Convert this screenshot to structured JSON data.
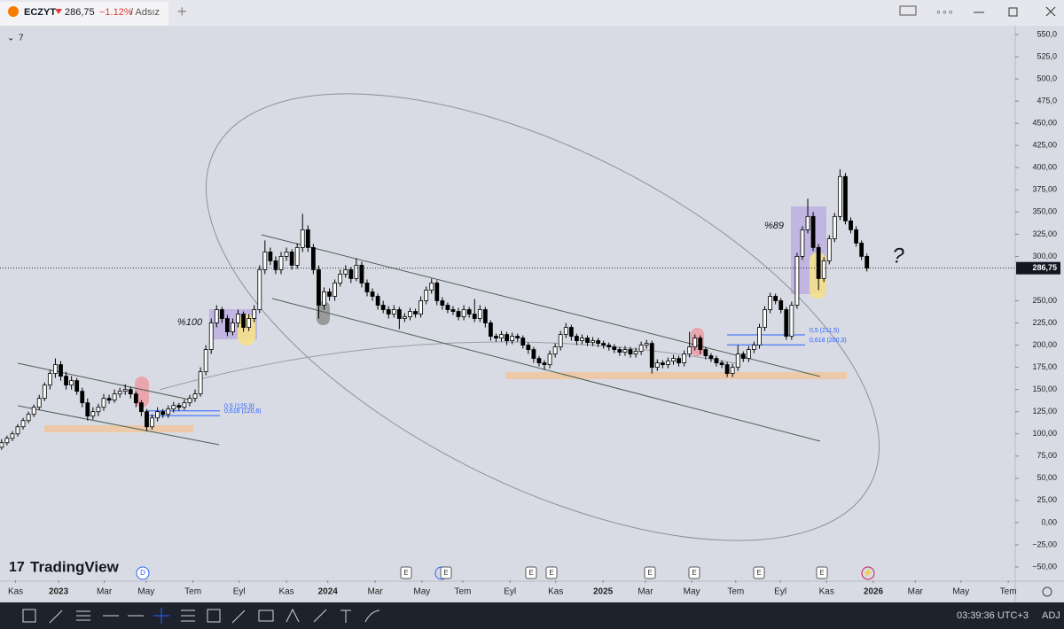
{
  "window": {
    "symbol": "ECZYT",
    "price": "286,75",
    "change": "−1.12%",
    "layout": "/ Adsız",
    "interval": "7"
  },
  "toolbar": {
    "time": "03:39:36 UTC+3",
    "adj": "ADJ"
  },
  "brand": "TradingView",
  "events": [
    "D",
    "E",
    "E",
    "E",
    "E",
    "E",
    "E",
    "E",
    "E"
  ],
  "chart_data": {
    "type": "candlestick",
    "up_color": "#ffffff",
    "down_color": "#000000",
    "wick_color": "#000000",
    "xlim": [
      -0.3,
      188.6
    ],
    "ylim": [
      -65,
      559
    ],
    "yticks": [
      {
        "value": 550,
        "label": "550,0"
      },
      {
        "value": 525,
        "label": "525,0"
      },
      {
        "value": 500,
        "label": "500,0"
      },
      {
        "value": 475,
        "label": "475,0"
      },
      {
        "value": 450,
        "label": "450,00"
      },
      {
        "value": 425,
        "label": "425,00"
      },
      {
        "value": 400,
        "label": "400,00"
      },
      {
        "value": 375,
        "label": "375,00"
      },
      {
        "value": 350,
        "label": "350,00"
      },
      {
        "value": 325,
        "label": "325,00"
      },
      {
        "value": 300,
        "label": "300,00"
      },
      {
        "value": 250,
        "label": "250,00"
      },
      {
        "value": 225,
        "label": "225,00"
      },
      {
        "value": 200,
        "label": "200,00"
      },
      {
        "value": 175,
        "label": "175,00"
      },
      {
        "value": 150,
        "label": "150,00"
      },
      {
        "value": 125,
        "label": "125,00"
      },
      {
        "value": 100,
        "label": "100,00"
      },
      {
        "value": 75,
        "label": "75,00"
      },
      {
        "value": 50,
        "label": "50,00"
      },
      {
        "value": 25,
        "label": "25,00"
      },
      {
        "value": 0,
        "label": "0,00"
      },
      {
        "value": -25,
        "label": "−25,00"
      },
      {
        "value": -50,
        "label": "−50,00"
      }
    ],
    "xticks": [
      {
        "value": 2.6,
        "label": "Kas"
      },
      {
        "value": 10.6,
        "label": "2023"
      },
      {
        "value": 19.1,
        "label": "Mar"
      },
      {
        "value": 26.9,
        "label": "May"
      },
      {
        "value": 35.6,
        "label": "Tem"
      },
      {
        "value": 44.2,
        "label": "Eyl"
      },
      {
        "value": 53,
        "label": "Kas"
      },
      {
        "value": 60.7,
        "label": "2024"
      },
      {
        "value": 69.5,
        "label": "Mar"
      },
      {
        "value": 78.2,
        "label": "May"
      },
      {
        "value": 85.8,
        "label": "Tem"
      },
      {
        "value": 94.6,
        "label": "Eyl"
      },
      {
        "value": 103.1,
        "label": "Kas"
      },
      {
        "value": 111.9,
        "label": "2025"
      },
      {
        "value": 119.8,
        "label": "Mar"
      },
      {
        "value": 128.4,
        "label": "May"
      },
      {
        "value": 136.6,
        "label": "Tem"
      },
      {
        "value": 144.9,
        "label": "Eyl"
      },
      {
        "value": 153.5,
        "label": "Kas"
      },
      {
        "value": 162.2,
        "label": "2026"
      },
      {
        "value": 170,
        "label": "Mar"
      },
      {
        "value": 178.5,
        "label": "May"
      },
      {
        "value": 187.3,
        "label": "Tem"
      }
    ],
    "last_price": {
      "value": 286.75,
      "label": "286,75"
    },
    "fib_levels": [
      {
        "value": 125.9,
        "label": "0,5 (125,9)"
      },
      {
        "value": 120.6,
        "label": "0,618 (120,6)"
      },
      {
        "value": 211.5,
        "label": "0,5 (211,5)"
      },
      {
        "value": 200.3,
        "label": "0,618 (200,3)"
      }
    ],
    "annotations": [
      "%100",
      "%89",
      "?"
    ],
    "candles": [
      [
        85,
        94,
        82,
        90
      ],
      [
        90,
        98,
        87,
        95
      ],
      [
        95,
        103,
        92,
        100
      ],
      [
        100,
        111,
        97,
        108
      ],
      [
        108,
        118,
        105,
        115
      ],
      [
        115,
        125,
        112,
        122
      ],
      [
        122,
        133,
        119,
        130
      ],
      [
        130,
        144,
        127,
        140
      ],
      [
        140,
        158,
        137,
        155
      ],
      [
        155,
        172,
        150,
        168
      ],
      [
        168,
        185,
        163,
        178
      ],
      [
        178,
        182,
        160,
        165
      ],
      [
        165,
        170,
        150,
        155
      ],
      [
        155,
        165,
        150,
        160
      ],
      [
        160,
        163,
        144,
        148
      ],
      [
        148,
        152,
        130,
        135
      ],
      [
        135,
        140,
        115,
        120
      ],
      [
        120,
        130,
        116,
        125
      ],
      [
        125,
        134,
        120,
        130
      ],
      [
        130,
        145,
        126,
        140
      ],
      [
        140,
        144,
        134,
        138
      ],
      [
        138,
        150,
        135,
        145
      ],
      [
        145,
        152,
        141,
        148
      ],
      [
        148,
        156,
        144,
        150
      ],
      [
        150,
        153,
        140,
        145
      ],
      [
        145,
        148,
        130,
        135
      ],
      [
        135,
        138,
        120,
        125
      ],
      [
        125,
        128,
        103,
        108
      ],
      [
        108,
        122,
        105,
        118
      ],
      [
        118,
        130,
        114,
        125
      ],
      [
        125,
        128,
        118,
        122
      ],
      [
        122,
        132,
        118,
        128
      ],
      [
        128,
        136,
        124,
        132
      ],
      [
        132,
        135,
        126,
        130
      ],
      [
        130,
        139,
        127,
        135
      ],
      [
        135,
        144,
        131,
        140
      ],
      [
        140,
        150,
        136,
        145
      ],
      [
        145,
        175,
        142,
        170
      ],
      [
        170,
        200,
        166,
        195
      ],
      [
        195,
        230,
        190,
        225
      ],
      [
        225,
        245,
        220,
        240
      ],
      [
        240,
        243,
        225,
        230
      ],
      [
        230,
        234,
        210,
        215
      ],
      [
        215,
        230,
        211,
        225
      ],
      [
        225,
        240,
        220,
        235
      ],
      [
        235,
        238,
        215,
        220
      ],
      [
        220,
        235,
        216,
        230
      ],
      [
        230,
        245,
        226,
        240
      ],
      [
        240,
        290,
        236,
        285
      ],
      [
        285,
        318,
        280,
        305
      ],
      [
        305,
        310,
        290,
        295
      ],
      [
        295,
        300,
        280,
        285
      ],
      [
        285,
        305,
        280,
        300
      ],
      [
        300,
        310,
        295,
        305
      ],
      [
        305,
        308,
        285,
        290
      ],
      [
        290,
        315,
        286,
        310
      ],
      [
        310,
        348,
        305,
        330
      ],
      [
        330,
        335,
        305,
        310
      ],
      [
        310,
        314,
        280,
        285
      ],
      [
        285,
        290,
        230,
        245
      ],
      [
        245,
        265,
        240,
        260
      ],
      [
        260,
        264,
        250,
        255
      ],
      [
        255,
        274,
        250,
        270
      ],
      [
        270,
        285,
        266,
        280
      ],
      [
        280,
        290,
        276,
        285
      ],
      [
        285,
        288,
        270,
        275
      ],
      [
        275,
        298,
        272,
        290
      ],
      [
        290,
        294,
        265,
        270
      ],
      [
        270,
        274,
        255,
        260
      ],
      [
        260,
        264,
        250,
        255
      ],
      [
        255,
        258,
        240,
        245
      ],
      [
        245,
        250,
        236,
        240
      ],
      [
        240,
        244,
        230,
        235
      ],
      [
        235,
        245,
        231,
        240
      ],
      [
        240,
        243,
        218,
        230
      ],
      [
        230,
        236,
        226,
        232
      ],
      [
        232,
        242,
        228,
        238
      ],
      [
        238,
        241,
        231,
        235
      ],
      [
        235,
        255,
        231,
        250
      ],
      [
        250,
        266,
        246,
        262
      ],
      [
        262,
        275,
        258,
        270
      ],
      [
        270,
        273,
        245,
        250
      ],
      [
        250,
        254,
        240,
        245
      ],
      [
        245,
        248,
        236,
        240
      ],
      [
        240,
        244,
        234,
        238
      ],
      [
        238,
        242,
        228,
        232
      ],
      [
        232,
        245,
        228,
        240
      ],
      [
        240,
        243,
        231,
        235
      ],
      [
        235,
        252,
        226,
        230
      ],
      [
        230,
        245,
        226,
        240
      ],
      [
        240,
        243,
        220,
        225
      ],
      [
        225,
        228,
        205,
        210
      ],
      [
        210,
        213,
        204,
        208
      ],
      [
        208,
        216,
        204,
        212
      ],
      [
        212,
        215,
        200,
        205
      ],
      [
        205,
        214,
        201,
        210
      ],
      [
        210,
        213,
        204,
        208
      ],
      [
        208,
        211,
        196,
        200
      ],
      [
        200,
        203,
        190,
        195
      ],
      [
        195,
        198,
        180,
        185
      ],
      [
        185,
        188,
        176,
        180
      ],
      [
        180,
        183,
        172,
        178
      ],
      [
        178,
        194,
        174,
        190
      ],
      [
        190,
        202,
        186,
        198
      ],
      [
        198,
        216,
        194,
        212
      ],
      [
        212,
        225,
        208,
        220
      ],
      [
        220,
        223,
        205,
        210
      ],
      [
        210,
        213,
        200,
        205
      ],
      [
        205,
        212,
        201,
        208
      ],
      [
        208,
        211,
        199,
        203
      ],
      [
        203,
        209,
        199,
        205
      ],
      [
        205,
        208,
        198,
        202
      ],
      [
        202,
        205,
        196,
        200
      ],
      [
        200,
        203,
        194,
        198
      ],
      [
        198,
        201,
        191,
        195
      ],
      [
        195,
        198,
        188,
        192
      ],
      [
        192,
        199,
        188,
        195
      ],
      [
        195,
        198,
        186,
        190
      ],
      [
        190,
        197,
        186,
        193
      ],
      [
        193,
        204,
        189,
        200
      ],
      [
        200,
        206,
        196,
        202
      ],
      [
        202,
        205,
        168,
        175
      ],
      [
        175,
        184,
        171,
        180
      ],
      [
        180,
        183,
        174,
        178
      ],
      [
        178,
        186,
        174,
        182
      ],
      [
        182,
        189,
        178,
        185
      ],
      [
        185,
        188,
        176,
        180
      ],
      [
        180,
        194,
        176,
        190
      ],
      [
        190,
        215,
        186,
        198
      ],
      [
        198,
        212,
        194,
        208
      ],
      [
        208,
        211,
        190,
        195
      ],
      [
        195,
        198,
        184,
        188
      ],
      [
        188,
        191,
        181,
        185
      ],
      [
        185,
        188,
        176,
        180
      ],
      [
        180,
        183,
        174,
        178
      ],
      [
        178,
        181,
        164,
        168
      ],
      [
        168,
        179,
        164,
        175
      ],
      [
        175,
        200,
        171,
        190
      ],
      [
        190,
        193,
        181,
        185
      ],
      [
        185,
        199,
        181,
        195
      ],
      [
        195,
        204,
        191,
        200
      ],
      [
        200,
        224,
        196,
        220
      ],
      [
        220,
        244,
        216,
        240
      ],
      [
        240,
        259,
        236,
        255
      ],
      [
        255,
        258,
        246,
        250
      ],
      [
        250,
        253,
        236,
        240
      ],
      [
        240,
        243,
        206,
        210
      ],
      [
        210,
        249,
        206,
        245
      ],
      [
        245,
        304,
        241,
        300
      ],
      [
        300,
        334,
        296,
        330
      ],
      [
        330,
        365,
        326,
        345
      ],
      [
        345,
        350,
        306,
        310
      ],
      [
        310,
        314,
        262,
        275
      ],
      [
        275,
        299,
        271,
        295
      ],
      [
        295,
        324,
        291,
        320
      ],
      [
        320,
        349,
        316,
        345
      ],
      [
        345,
        398,
        341,
        390
      ],
      [
        390,
        394,
        336,
        340
      ],
      [
        340,
        344,
        326,
        330
      ],
      [
        330,
        334,
        311,
        315
      ],
      [
        315,
        318,
        296,
        300
      ],
      [
        300,
        303,
        283,
        286.75
      ]
    ]
  }
}
